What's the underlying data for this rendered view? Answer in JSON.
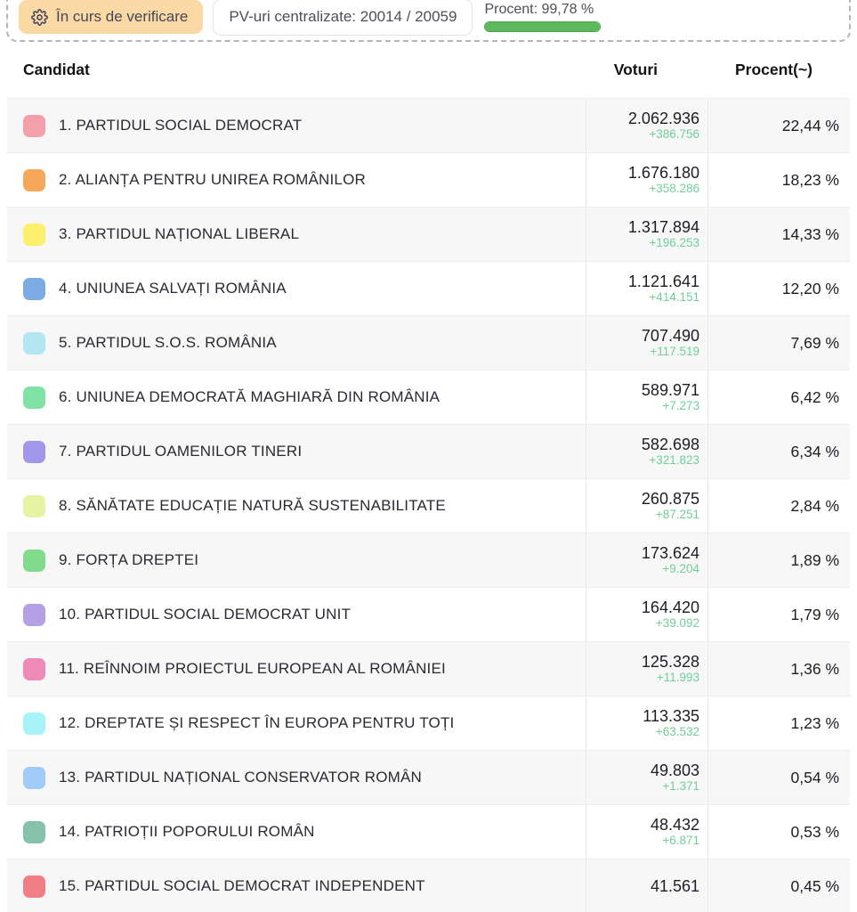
{
  "status_bar": {
    "badge": {
      "label": "În curs de verificare",
      "icon": "gear",
      "bg_color": "#fbd9a4"
    },
    "pv_box": {
      "label": "PV-uri centralizate: 20014 / 20059"
    },
    "progress": {
      "label": "Procent: 99,78 %",
      "value_pct": 99.78,
      "fill_color": "#5cb85c"
    }
  },
  "table": {
    "headers": {
      "candidate": "Candidat",
      "votes": "Voturi",
      "percent": "Procent(~)"
    },
    "rows": [
      {
        "rank": 1,
        "name": "PARTIDUL SOCIAL DEMOCRAT",
        "color": "#f3a0aa",
        "votes": "2.062.936",
        "delta": "+386.756",
        "percent": "22,44 %"
      },
      {
        "rank": 2,
        "name": "ALIANȚA PENTRU UNIREA ROMÂNILOR",
        "color": "#f6a75a",
        "votes": "1.676.180",
        "delta": "+358.286",
        "percent": "18,23 %"
      },
      {
        "rank": 3,
        "name": "PARTIDUL NAȚIONAL LIBERAL",
        "color": "#fbef6c",
        "votes": "1.317.894",
        "delta": "+196.253",
        "percent": "14,33 %"
      },
      {
        "rank": 4,
        "name": "UNIUNEA SALVAȚI ROMÂNIA",
        "color": "#7caae2",
        "votes": "1.121.641",
        "delta": "+414.151",
        "percent": "12,20 %"
      },
      {
        "rank": 5,
        "name": "PARTIDUL S.O.S. ROMÂNIA",
        "color": "#b2e7f2",
        "votes": "707.490",
        "delta": "+117.519",
        "percent": "7,69 %"
      },
      {
        "rank": 6,
        "name": "UNIUNEA DEMOCRATĂ MAGHIARĂ DIN ROMÂNIA",
        "color": "#81e2a5",
        "votes": "589.971",
        "delta": "+7.273",
        "percent": "6,42 %"
      },
      {
        "rank": 7,
        "name": "PARTIDUL OAMENILOR TINERI",
        "color": "#a295ec",
        "votes": "582.698",
        "delta": "+321.823",
        "percent": "6,34 %"
      },
      {
        "rank": 8,
        "name": "SĂNĂTATE EDUCAȚIE NATURĂ SUSTENABILITATE",
        "color": "#e5f3a3",
        "votes": "260.875",
        "delta": "+87.251",
        "percent": "2,84 %"
      },
      {
        "rank": 9,
        "name": "FORȚA DREPTEI",
        "color": "#82da8d",
        "votes": "173.624",
        "delta": "+9.204",
        "percent": "1,89 %"
      },
      {
        "rank": 10,
        "name": "PARTIDUL SOCIAL DEMOCRAT UNIT",
        "color": "#b6a0e5",
        "votes": "164.420",
        "delta": "+39.092",
        "percent": "1,79 %"
      },
      {
        "rank": 11,
        "name": "REÎNNOIM PROIECTUL EUROPEAN AL ROMÂNIEI",
        "color": "#f189b8",
        "votes": "125.328",
        "delta": "+11.993",
        "percent": "1,36 %"
      },
      {
        "rank": 12,
        "name": "DREPTATE ȘI RESPECT ÎN EUROPA PENTRU TOȚI",
        "color": "#a7f3fa",
        "votes": "113.335",
        "delta": "+63.532",
        "percent": "1,23 %"
      },
      {
        "rank": 13,
        "name": "PARTIDUL NAȚIONAL CONSERVATOR ROMÂN",
        "color": "#a1cbf8",
        "votes": "49.803",
        "delta": "+1.371",
        "percent": "0,54 %"
      },
      {
        "rank": 14,
        "name": "PATRIOȚII POPORULUI ROMÂN",
        "color": "#85c2a9",
        "votes": "48.432",
        "delta": "+6.871",
        "percent": "0,53 %"
      },
      {
        "rank": 15,
        "name": "PARTIDUL SOCIAL DEMOCRAT INDEPENDENT",
        "color": "#ef7e85",
        "votes": "41.561",
        "delta": "",
        "percent": "0,45 %"
      }
    ]
  }
}
